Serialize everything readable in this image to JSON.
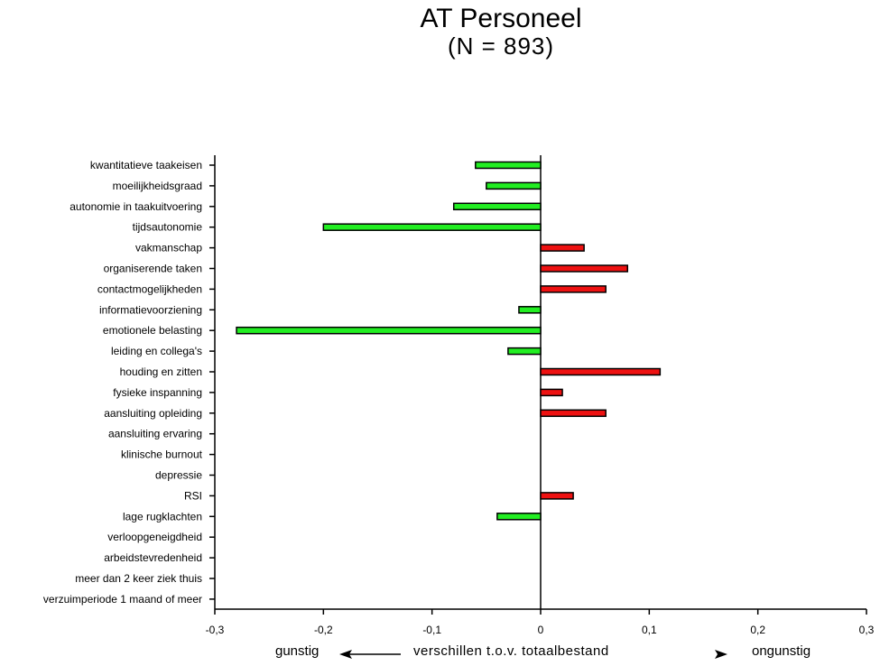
{
  "title_line1": "AT Personeel",
  "title_line2": "(N = 893)",
  "footer": {
    "left": "gunstig",
    "middle": "verschillen t.o.v. totaalbestand",
    "right": "ongunstig"
  },
  "colors": {
    "favorable": "#22ee22",
    "unfavorable": "#ee1111",
    "axis": "#000000"
  },
  "chart_data": {
    "type": "bar",
    "orientation": "horizontal",
    "xlim": [
      -0.3,
      0.3
    ],
    "xticks": [
      "-0,3",
      "-0,2",
      "-0,1",
      "0",
      "0,1",
      "0,2",
      "0,3"
    ],
    "xtick_values": [
      -0.3,
      -0.2,
      -0.1,
      0,
      0.1,
      0.2,
      0.3
    ],
    "categories": [
      "kwantitatieve taakeisen",
      "moeilijkheidsgraad",
      "autonomie in taakuitvoering",
      "tijdsautonomie",
      "vakmanschap",
      "organiserende taken",
      "contactmogelijkheden",
      "informatievoorziening",
      "emotionele belasting",
      "leiding en collega's",
      "houding en zitten",
      "fysieke inspanning",
      "aansluiting opleiding",
      "aansluiting ervaring",
      "klinische burnout",
      "depressie",
      "RSI",
      "lage rugklachten",
      "verloopgeneigdheid",
      "arbeidstevredenheid",
      "meer dan 2 keer ziek thuis",
      "verzuimperiode 1 maand of meer"
    ],
    "values": [
      -0.06,
      -0.05,
      -0.08,
      -0.2,
      0.04,
      0.08,
      0.06,
      -0.02,
      -0.28,
      -0.03,
      0.11,
      0.02,
      0.06,
      0,
      0,
      0,
      0.03,
      -0.04,
      0,
      0,
      0,
      0
    ],
    "legend": "none",
    "grid": false
  }
}
